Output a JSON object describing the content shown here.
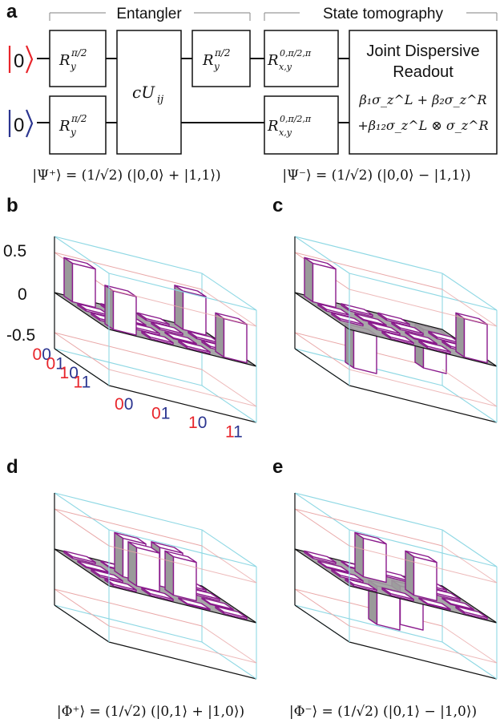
{
  "colors": {
    "red": "#e8252b",
    "blue": "#2b3590",
    "purple": "#8a1a8c",
    "grey_plane": "#9d9d9d",
    "box_line": "#8fd8e4",
    "grid_red": "#e9a7a7"
  },
  "panel_a": {
    "letter": "a",
    "entangler_label": "Entangler",
    "tomography_label": "State tomography",
    "qubit_top_digit": "0",
    "qubit_bottom_digit": "0",
    "gate_ry": "R",
    "gate_ry_sub": "y",
    "gate_ry_sup": "π/2",
    "gate_cu": "cU",
    "gate_cu_sub": "ij",
    "gate_rxy": "R",
    "gate_rxy_sub": "x,y",
    "gate_rxy_sup": "0,π/2,π",
    "readout_line1": "Joint Dispersive",
    "readout_line2": "Readout",
    "readout_eq1": "β₁σ_z^L + β₂σ_z^R",
    "readout_eq2": "+β₁₂σ_z^L ⊗ σ_z^R",
    "state_left": "|Ψ⁺⟩ = (1/√2) (|0,0⟩ + |1,1⟩)",
    "state_right": "|Ψ⁻⟩ = (1/√2) (|0,0⟩ − |1,1⟩)"
  },
  "panels": [
    {
      "letter": "b",
      "state": ""
    },
    {
      "letter": "c",
      "state": ""
    },
    {
      "letter": "d",
      "state": "|Φ⁺⟩ = (1/√2) (|0,1⟩ + |1,0⟩)"
    },
    {
      "letter": "e",
      "state": "|Φ⁻⟩ = (1/√2) (|0,1⟩ − |1,0⟩)"
    }
  ],
  "axis": {
    "z_ticks": [
      "0.5",
      "0",
      "-0.5"
    ],
    "row_labels": [
      {
        "q1": "0",
        "q2": "0"
      },
      {
        "q1": "0",
        "q2": "1"
      },
      {
        "q1": "1",
        "q2": "0"
      },
      {
        "q1": "1",
        "q2": "1"
      }
    ],
    "col_labels": [
      {
        "q1": "0",
        "q2": "0"
      },
      {
        "q1": "0",
        "q2": "1"
      },
      {
        "q1": "1",
        "q2": "0"
      },
      {
        "q1": "1",
        "q2": "1"
      }
    ]
  },
  "chart_data": [
    {
      "type": "bar3d",
      "panel": "b",
      "zlim": [
        -0.7,
        0.7
      ],
      "rows": [
        "00",
        "01",
        "10",
        "11"
      ],
      "cols": [
        "00",
        "01",
        "10",
        "11"
      ],
      "values": [
        [
          0.48,
          0.02,
          0.02,
          0.48
        ],
        [
          0.02,
          0.01,
          0.02,
          0.02
        ],
        [
          0.02,
          0.02,
          0.01,
          0.02
        ],
        [
          0.48,
          0.02,
          0.02,
          0.48
        ]
      ]
    },
    {
      "type": "bar3d",
      "panel": "c",
      "zlim": [
        -0.7,
        0.7
      ],
      "rows": [
        "00",
        "01",
        "10",
        "11"
      ],
      "cols": [
        "00",
        "01",
        "10",
        "11"
      ],
      "values": [
        [
          0.48,
          0.02,
          0.02,
          -0.48
        ],
        [
          0.02,
          0.01,
          0.02,
          0.02
        ],
        [
          0.02,
          0.02,
          0.01,
          0.02
        ],
        [
          -0.48,
          0.02,
          0.02,
          0.48
        ]
      ]
    },
    {
      "type": "bar3d",
      "panel": "d",
      "zlim": [
        -0.7,
        0.7
      ],
      "rows": [
        "00",
        "01",
        "10",
        "11"
      ],
      "cols": [
        "00",
        "01",
        "10",
        "11"
      ],
      "values": [
        [
          0.02,
          0.01,
          0.02,
          0.02
        ],
        [
          0.01,
          0.48,
          0.48,
          0.02
        ],
        [
          0.02,
          0.48,
          0.48,
          0.01
        ],
        [
          0.02,
          0.02,
          0.01,
          0.02
        ]
      ]
    },
    {
      "type": "bar3d",
      "panel": "e",
      "zlim": [
        -0.7,
        0.7
      ],
      "rows": [
        "00",
        "01",
        "10",
        "11"
      ],
      "cols": [
        "00",
        "01",
        "10",
        "11"
      ],
      "values": [
        [
          0.02,
          0.01,
          0.02,
          0.02
        ],
        [
          0.01,
          0.48,
          -0.48,
          0.02
        ],
        [
          0.02,
          -0.48,
          0.48,
          0.01
        ],
        [
          0.02,
          0.02,
          0.01,
          0.02
        ]
      ]
    }
  ]
}
